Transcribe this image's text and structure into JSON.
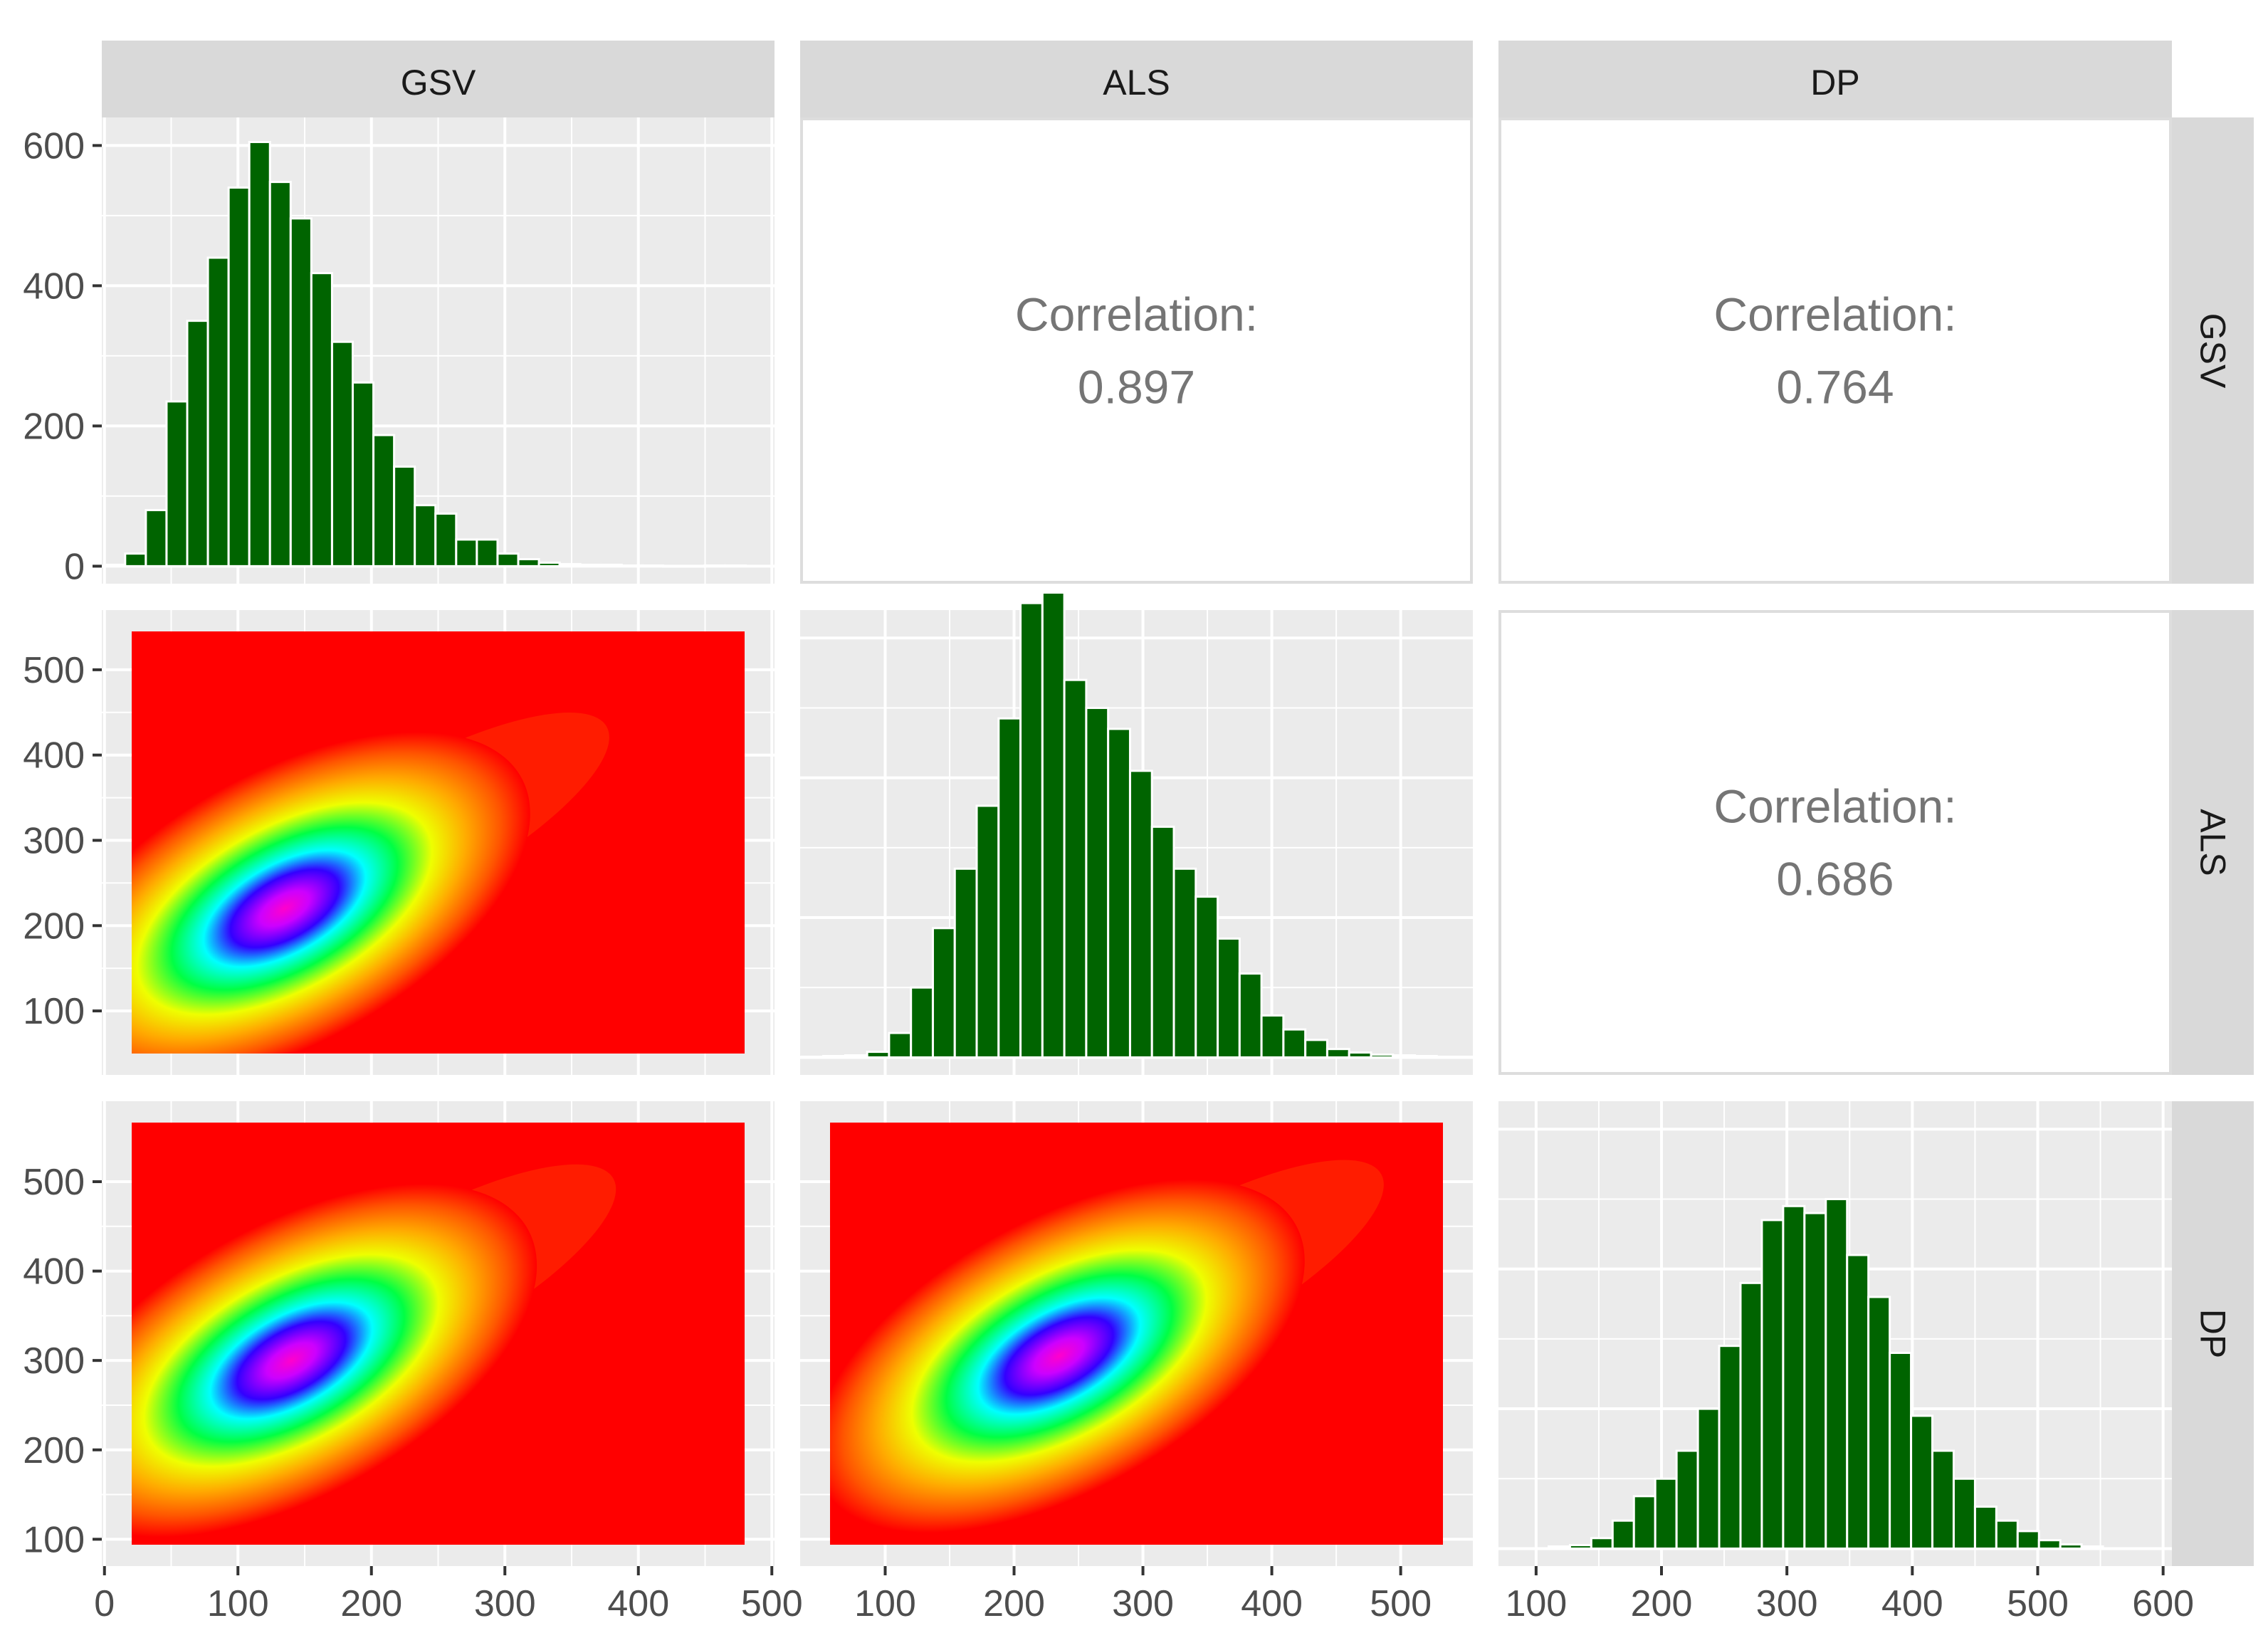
{
  "chart_data": {
    "type": "pairs-matrix",
    "title": "",
    "variables": [
      "GSV",
      "ALS",
      "DP"
    ],
    "colors": {
      "bar_fill": "#006400",
      "bar_outline": "#ffffff",
      "panel_bg": "#ebebeb",
      "strip_bg": "#d9d9d9",
      "density_low": "#ff0000",
      "density_high": "#ff00cc"
    },
    "correlation_label": "Correlation:",
    "correlations": [
      {
        "row": "GSV",
        "col": "ALS",
        "value": "0.897"
      },
      {
        "row": "GSV",
        "col": "DP",
        "value": "0.764"
      },
      {
        "row": "ALS",
        "col": "DP",
        "value": "0.686"
      }
    ],
    "histograms": [
      {
        "variable": "GSV",
        "xlim": [
          -2,
          502
        ],
        "ylim": [
          -25,
          640
        ],
        "bin_start": 0,
        "bin_width": 15.5,
        "counts": [
          2,
          18,
          80,
          235,
          350,
          440,
          540,
          605,
          548,
          496,
          418,
          320,
          262,
          187,
          142,
          87,
          75,
          38,
          38,
          18,
          10,
          5,
          3,
          2,
          2,
          1,
          1,
          0,
          0,
          1,
          1
        ]
      },
      {
        "variable": "ALS",
        "xlim": [
          34,
          556
        ],
        "ylim": [
          -25,
          640
        ],
        "bin_start": 35,
        "bin_width": 17,
        "counts": [
          1,
          2,
          3,
          8,
          35,
          100,
          185,
          270,
          360,
          485,
          650,
          665,
          540,
          500,
          470,
          410,
          330,
          270,
          230,
          170,
          120,
          60,
          40,
          25,
          12,
          7,
          4,
          3,
          2,
          1,
          1
        ]
      },
      {
        "variable": "DP",
        "xlim": [
          70,
          607
        ],
        "ylim": [
          -25,
          640
        ],
        "bin_start": 110,
        "bin_width": 17,
        "counts": [
          3,
          5,
          15,
          40,
          75,
          100,
          140,
          200,
          290,
          380,
          470,
          490,
          480,
          500,
          420,
          360,
          280,
          190,
          140,
          100,
          60,
          40,
          25,
          12,
          6,
          3
        ]
      }
    ],
    "density_panels": [
      {
        "x": "GSV",
        "y": "ALS",
        "xlim": [
          -2,
          502
        ],
        "ylim": [
          25,
          570
        ],
        "center": [
          135,
          220
        ]
      },
      {
        "x": "GSV",
        "y": "DP",
        "xlim": [
          -2,
          502
        ],
        "ylim": [
          70,
          590
        ],
        "center": [
          140,
          300
        ]
      },
      {
        "x": "ALS",
        "y": "DP",
        "xlim": [
          34,
          556
        ],
        "ylim": [
          70,
          590
        ],
        "center": [
          235,
          305
        ]
      }
    ],
    "strips": {
      "top": [
        "GSV",
        "ALS",
        "DP"
      ],
      "right": [
        "GSV",
        "ALS",
        "DP"
      ]
    },
    "axes": {
      "left": [
        {
          "ticks": [
            0,
            200,
            400,
            600
          ],
          "labels": [
            "0",
            "200",
            "400",
            "600"
          ]
        },
        {
          "ticks": [
            100,
            200,
            300,
            400,
            500
          ],
          "labels": [
            "100",
            "200",
            "300",
            "400",
            "500"
          ]
        },
        {
          "ticks": [
            100,
            200,
            300,
            400,
            500
          ],
          "labels": [
            "100",
            "200",
            "300",
            "400",
            "500"
          ]
        }
      ],
      "bottom": [
        {
          "ticks": [
            0,
            100,
            200,
            300,
            400,
            500
          ],
          "labels": [
            "0",
            "100",
            "200",
            "300",
            "400",
            "500"
          ]
        },
        {
          "ticks": [
            100,
            200,
            300,
            400,
            500
          ],
          "labels": [
            "100",
            "200",
            "300",
            "400",
            "500"
          ]
        },
        {
          "ticks": [
            100,
            200,
            300,
            400,
            500,
            600
          ],
          "labels": [
            "100",
            "200",
            "300",
            "400",
            "500",
            "600"
          ]
        }
      ]
    }
  }
}
